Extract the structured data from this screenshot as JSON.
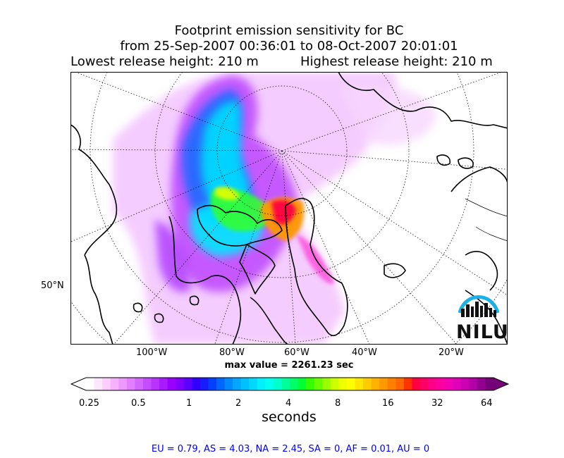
{
  "title": {
    "line1": "Footprint emission sensitivity for BC",
    "line2": "from 25-Sep-2007 00:36:01 to 08-Oct-2007 20:01:01",
    "lowest_release": "Lowest release height: 210 m",
    "highest_release": "Highest release height: 210 m"
  },
  "map": {
    "projection": "polar stereographic",
    "lat_labels": [
      "50°N"
    ],
    "lon_labels": [
      "100°W",
      "80°W",
      "60°W",
      "40°W",
      "20°W"
    ],
    "graticule": "dotted",
    "max_value_text": "max value = 2261.23 sec",
    "logo_text": "NILU"
  },
  "colorbar": {
    "tick_labels": [
      "0.25",
      "0.5",
      "1",
      "2",
      "4",
      "8",
      "16",
      "32",
      "64"
    ],
    "unit_label": "seconds",
    "scale": "log",
    "extend": "both",
    "colors": [
      "#ffffff",
      "#ffe6ff",
      "#ffccff",
      "#f5b3ff",
      "#ec99ff",
      "#e080ff",
      "#d366ff",
      "#c64dff",
      "#b833ff",
      "#a81aff",
      "#9900ff",
      "#7f00ff",
      "#5c00ff",
      "#3300ff",
      "#1a1aff",
      "#0040ff",
      "#0066ff",
      "#0088ff",
      "#00a6ff",
      "#00c0ff",
      "#00d8ff",
      "#00f0ff",
      "#00ffee",
      "#00ffcc",
      "#00ff99",
      "#00ff66",
      "#00ff33",
      "#33ff00",
      "#66ff00",
      "#99ff00",
      "#ccff00",
      "#eeff00",
      "#ffff00",
      "#ffe600",
      "#ffcc00",
      "#ffb300",
      "#ff9900",
      "#ff8000",
      "#ff6600",
      "#ff3300",
      "#ff0040",
      "#ff0066",
      "#ff0088",
      "#ff00a0",
      "#f000b0",
      "#e000b8",
      "#cc00b3",
      "#b000a6",
      "#930090",
      "#760077"
    ]
  },
  "region_summary": "EU = 0.79,  AS = 4.03,  NA = 2.45,  SA = 0,  AF = 0.01,  AU = 0"
}
